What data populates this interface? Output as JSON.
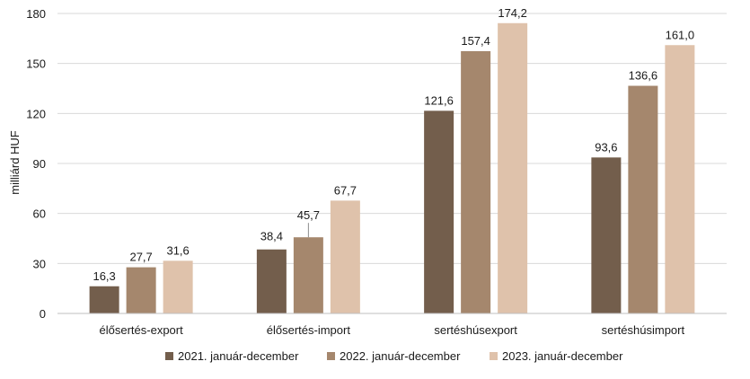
{
  "chart_data": {
    "type": "bar",
    "ylabel": "milliárd HUF",
    "xlabel": "",
    "ylim": [
      0,
      180
    ],
    "yticks": [
      0,
      30,
      60,
      90,
      120,
      150,
      180
    ],
    "ytick_labels": [
      "0",
      "30",
      "60",
      "90",
      "120",
      "150",
      "180"
    ],
    "grid": true,
    "legend_position": "bottom",
    "categories": [
      "élősertés-export",
      "élősertés-import",
      "sertéshúsexport",
      "sertéshúsimport"
    ],
    "series": [
      {
        "name": "2021. január-december",
        "color": "#735e4c",
        "values": [
          16.3,
          38.4,
          121.6,
          93.6
        ],
        "labels": [
          "16,3",
          "38,4",
          "121,6",
          "93,6"
        ]
      },
      {
        "name": "2022. január-december",
        "color": "#a5876d",
        "values": [
          27.7,
          45.7,
          157.4,
          136.6
        ],
        "labels": [
          "27,7",
          "45,7",
          "157,4",
          "136,6"
        ]
      },
      {
        "name": "2023. január-december",
        "color": "#dfc2ab",
        "values": [
          31.6,
          67.7,
          174.2,
          161.0
        ],
        "labels": [
          "31,6",
          "67,7",
          "174,2",
          "161,0"
        ]
      }
    ]
  }
}
